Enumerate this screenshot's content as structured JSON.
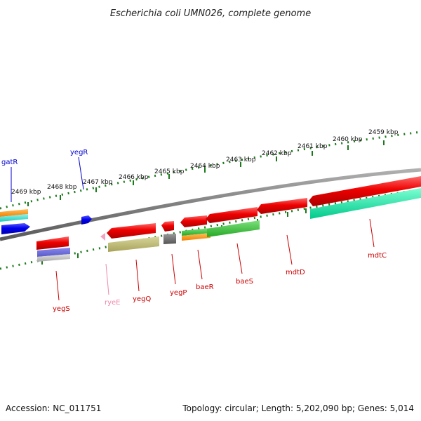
{
  "title": "Escherichia coli UMN026, complete genome",
  "footer": {
    "accession": "Accession: NC_011751",
    "summary": "Topology: circular; Length: 5,202,090 bp; Genes: 5,014"
  },
  "ruler_ticks": [
    "2469 kbp",
    "2468 kbp",
    "2467 kbp",
    "2466 kbp",
    "2465 kbp",
    "2464 kbp",
    "2463 kbp",
    "2462 kbp",
    "2461 kbp",
    "2460 kbp",
    "2459 kbp"
  ],
  "genes": [
    {
      "name": "gatR",
      "color": "#0000cc"
    },
    {
      "name": "yegR",
      "color": "#0000cc"
    },
    {
      "name": "yegS",
      "color": "#cc0000"
    },
    {
      "name": "ryeE",
      "color": "#ee88aa"
    },
    {
      "name": "yegQ",
      "color": "#cc0000"
    },
    {
      "name": "yegP",
      "color": "#cc0000"
    },
    {
      "name": "baeR",
      "color": "#cc0000"
    },
    {
      "name": "baeS",
      "color": "#cc0000"
    },
    {
      "name": "mdtD",
      "color": "#cc0000"
    },
    {
      "name": "mdtC",
      "color": "#cc0000"
    }
  ],
  "colors": {
    "backbone": "#808080",
    "ruler": "#1a7a1a",
    "cds_forward": "#dd0000",
    "cds_reverse": "#0000ee"
  }
}
